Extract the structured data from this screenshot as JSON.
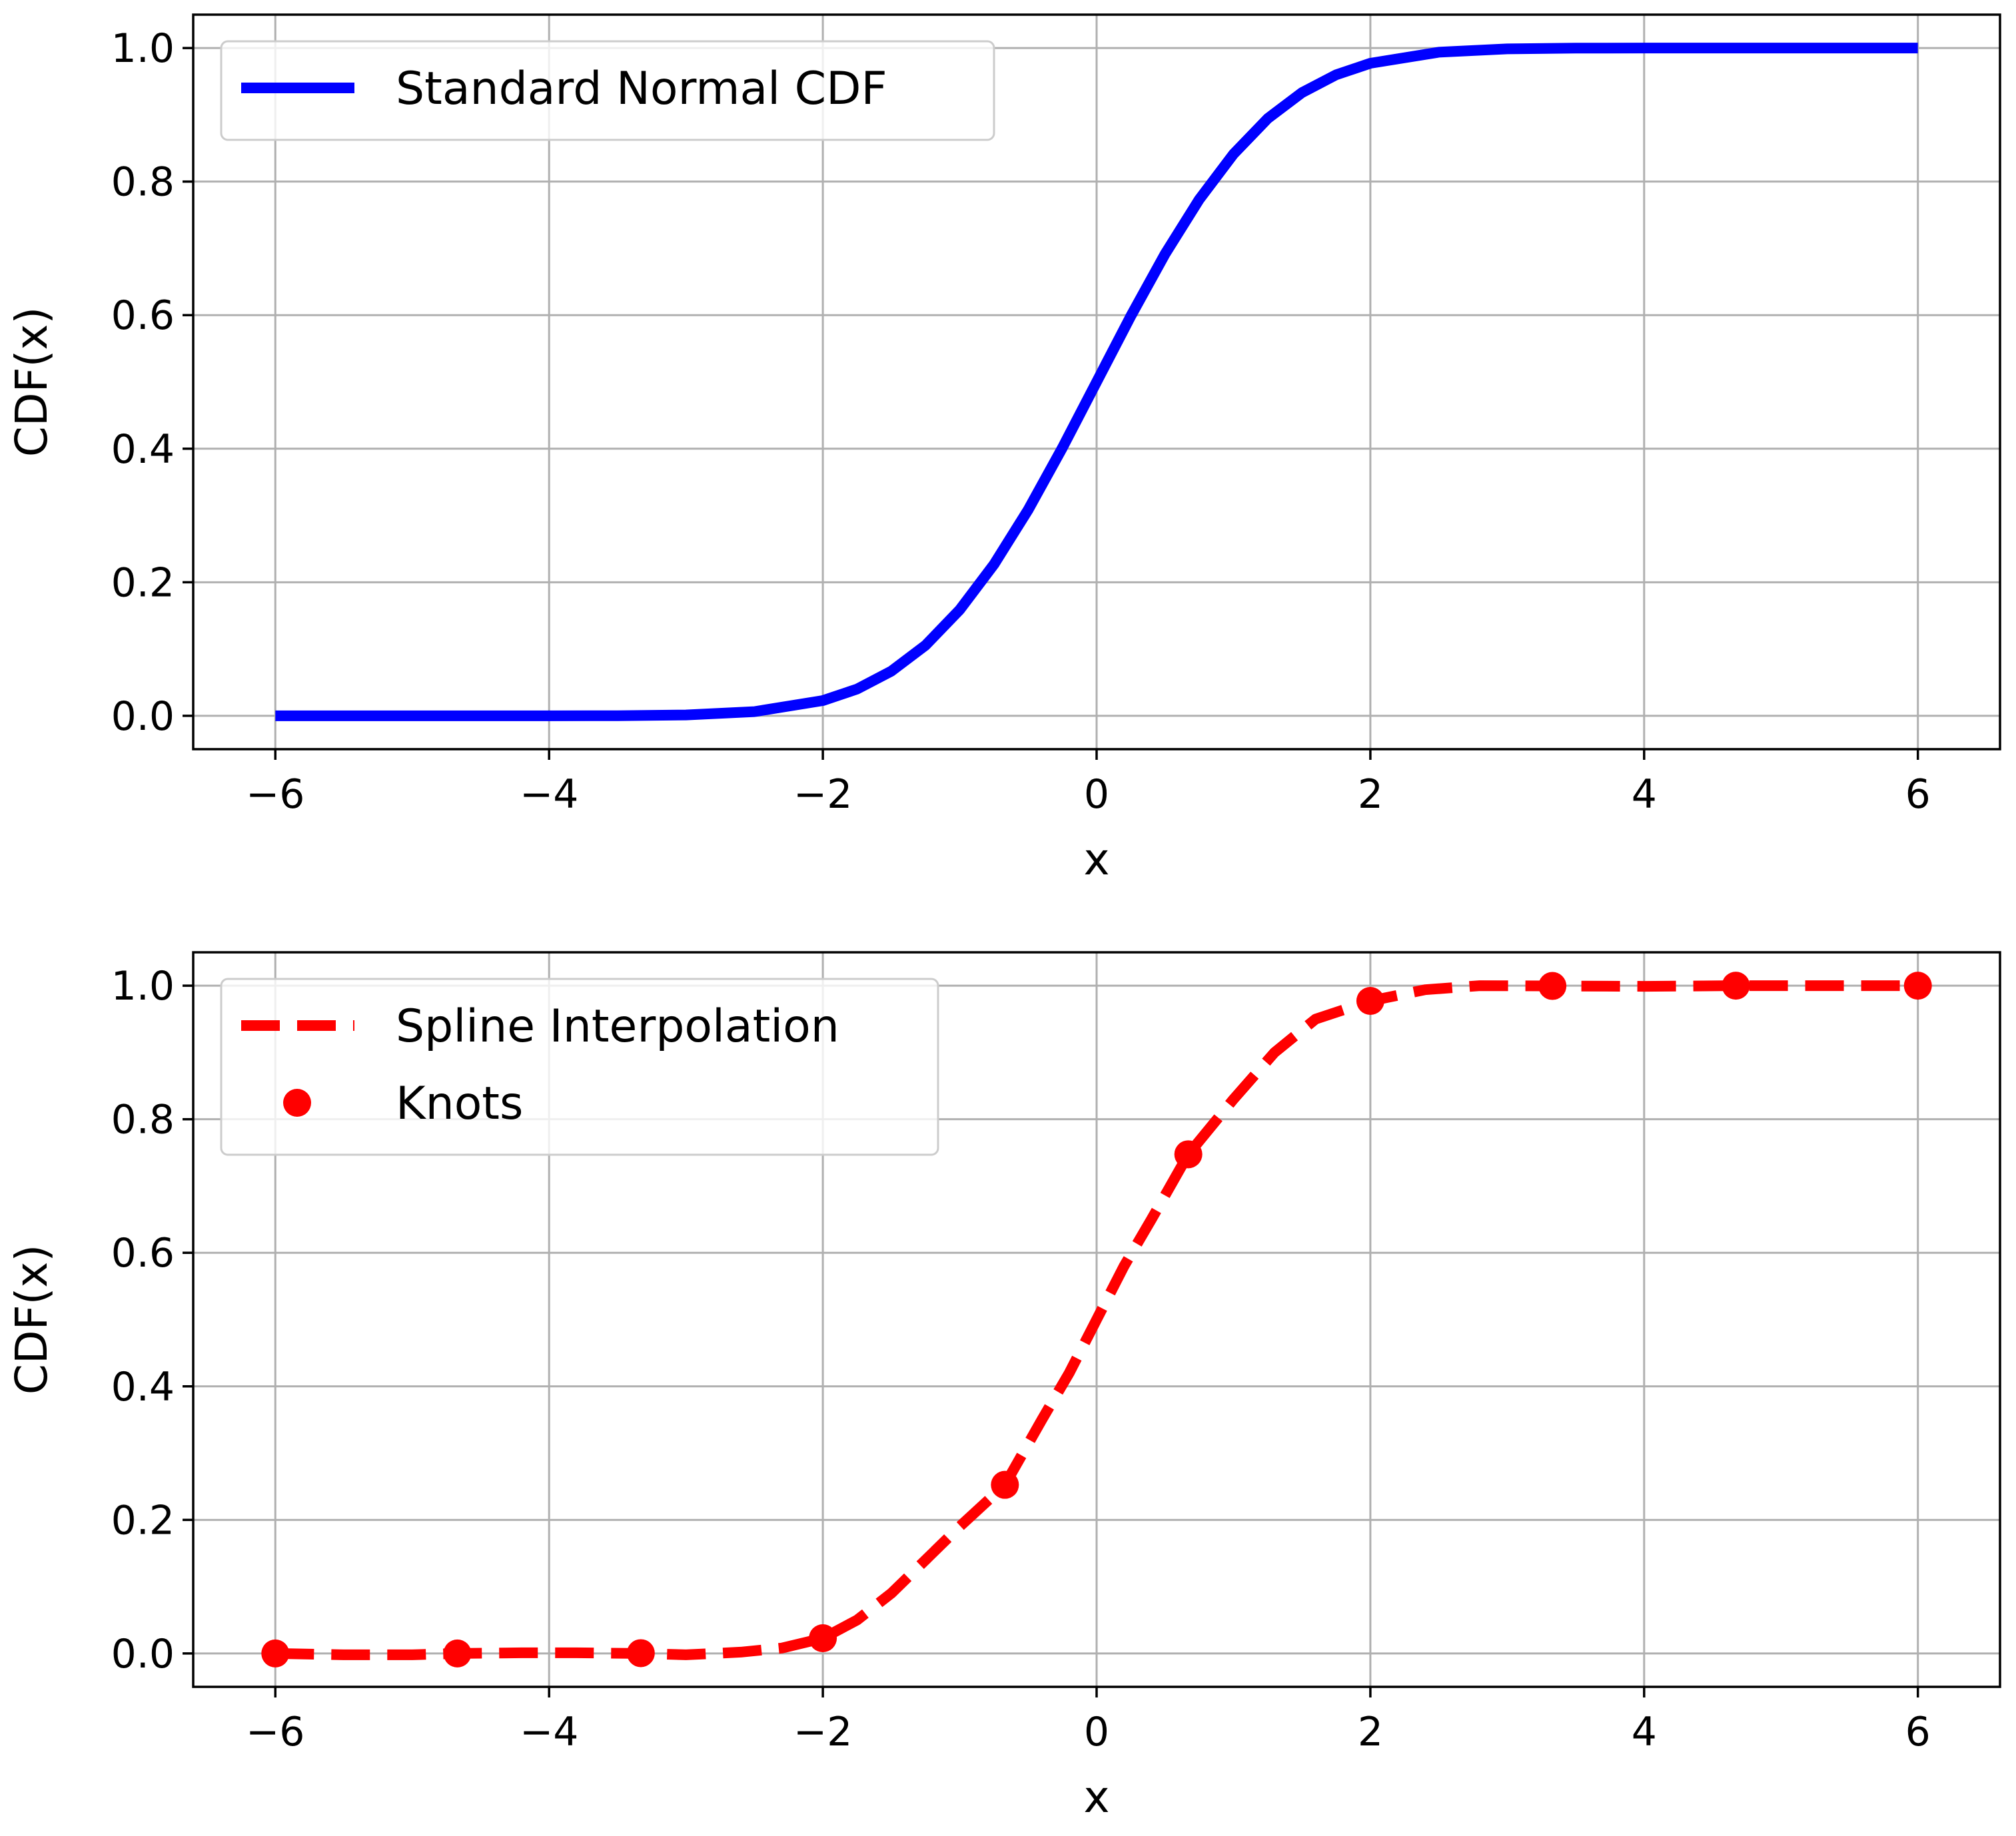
{
  "chart_data": [
    {
      "type": "line",
      "xlabel": "x",
      "ylabel": "CDF(x)",
      "xlim": [
        -6.6,
        6.6
      ],
      "ylim": [
        -0.05,
        1.05
      ],
      "xticks": [
        -6,
        -4,
        -2,
        0,
        2,
        4,
        6
      ],
      "xtick_labels": [
        "−6",
        "−4",
        "−2",
        "0",
        "2",
        "4",
        "6"
      ],
      "yticks": [
        0.0,
        0.2,
        0.4,
        0.6,
        0.8,
        1.0
      ],
      "ytick_labels": [
        "0.0",
        "0.2",
        "0.4",
        "0.6",
        "0.8",
        "1.0"
      ],
      "grid": true,
      "legend_position": "upper-left",
      "series": [
        {
          "name": "Standard Normal CDF",
          "color": "#0000ff",
          "style": "solid",
          "x": [
            -6,
            -5,
            -4,
            -3.5,
            -3,
            -2.5,
            -2,
            -1.75,
            -1.5,
            -1.25,
            -1,
            -0.75,
            -0.5,
            -0.25,
            0,
            0.25,
            0.5,
            0.75,
            1,
            1.25,
            1.5,
            1.75,
            2,
            2.5,
            3,
            3.5,
            4,
            5,
            6
          ],
          "y": [
            0.0,
            0.0,
            0.0,
            0.0002,
            0.0013,
            0.0062,
            0.0228,
            0.0401,
            0.0668,
            0.1056,
            0.1587,
            0.2266,
            0.3085,
            0.4013,
            0.5,
            0.5987,
            0.6915,
            0.7734,
            0.8413,
            0.8944,
            0.9332,
            0.9599,
            0.9772,
            0.9938,
            0.9987,
            0.9998,
            1.0,
            1.0,
            1.0
          ]
        }
      ]
    },
    {
      "type": "line",
      "xlabel": "x",
      "ylabel": "CDF(x)",
      "xlim": [
        -6.6,
        6.6
      ],
      "ylim": [
        -0.05,
        1.05
      ],
      "xticks": [
        -6,
        -4,
        -2,
        0,
        2,
        4,
        6
      ],
      "xtick_labels": [
        "−6",
        "−4",
        "−2",
        "0",
        "2",
        "4",
        "6"
      ],
      "yticks": [
        0.0,
        0.2,
        0.4,
        0.6,
        0.8,
        1.0
      ],
      "ytick_labels": [
        "0.0",
        "0.2",
        "0.4",
        "0.6",
        "0.8",
        "1.0"
      ],
      "grid": true,
      "legend_position": "upper-left",
      "series": [
        {
          "name": "Spline Interpolation",
          "color": "#ff0000",
          "style": "dashed",
          "x": [
            -6,
            -5.5,
            -5,
            -4.67,
            -4.2,
            -3.8,
            -3.33,
            -3,
            -2.6,
            -2.3,
            -2,
            -1.75,
            -1.5,
            -1.25,
            -1,
            -0.67,
            -0.4,
            -0.2,
            0,
            0.2,
            0.4,
            0.67,
            1,
            1.3,
            1.6,
            2,
            2.4,
            2.8,
            3.33,
            4,
            4.67,
            5.3,
            6
          ],
          "y": [
            0.0,
            -0.002,
            -0.002,
            0.0,
            0.001,
            0.001,
            0.0,
            -0.002,
            0.002,
            0.008,
            0.0228,
            0.05,
            0.09,
            0.14,
            0.19,
            0.2525,
            0.35,
            0.42,
            0.5,
            0.58,
            0.65,
            0.7475,
            0.83,
            0.9,
            0.95,
            0.9772,
            0.994,
            1.0,
            0.9996,
            0.999,
            1.0,
            1.0,
            1.0
          ]
        },
        {
          "name": "Knots",
          "color": "#ff0000",
          "style": "markers",
          "x": [
            -6,
            -4.67,
            -3.33,
            -2,
            -0.67,
            0.67,
            2,
            3.33,
            4.67,
            6
          ],
          "y": [
            0.0,
            0.0,
            0.0004,
            0.0228,
            0.2525,
            0.7475,
            0.9772,
            0.9996,
            1.0,
            1.0
          ]
        }
      ]
    }
  ]
}
